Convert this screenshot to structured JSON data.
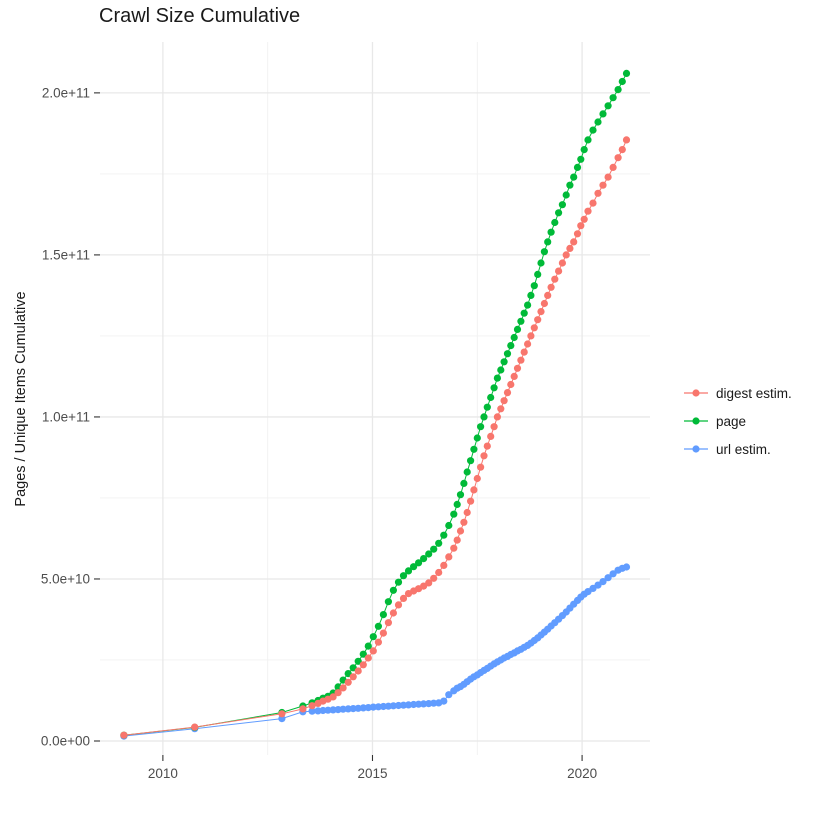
{
  "header": {
    "title": "Crawl Size Cumulative"
  },
  "y_axis": {
    "title": "Pages / Unique Items Cumulative"
  },
  "legend": {
    "position": "right",
    "items": [
      {
        "label": "digest estim.",
        "color": "#F8766D"
      },
      {
        "label": "page",
        "color": "#00BA38"
      },
      {
        "label": "url estim.",
        "color": "#619CFF"
      }
    ]
  },
  "chart_data": {
    "type": "line",
    "title": "Crawl Size Cumulative",
    "xlabel": "",
    "ylabel": "Pages / Unique Items Cumulative",
    "values_unit": "billions (1e9) of pages / unique items, cumulative",
    "grid": true,
    "legend_position": "right",
    "xlim": [
      2008.5,
      2021.62
    ],
    "ylim_billions": [
      -4.32,
      215.7
    ],
    "x_ticks": {
      "major": [
        2010,
        2015,
        2020
      ],
      "major_labels": [
        "2010",
        "2015",
        "2020"
      ],
      "minor": [
        2012.5,
        2017.5
      ]
    },
    "y_ticks": {
      "major": [
        0,
        50,
        100,
        150,
        200
      ],
      "major_labels": [
        "0.0e+00",
        "5.0e+10",
        "1.0e+11",
        "1.5e+11",
        "2.0e+11"
      ],
      "minor": [
        25,
        75,
        125,
        175
      ]
    },
    "x_years": [
      2009.07,
      2010.76,
      2012.84,
      2013.34,
      2013.56,
      2013.7,
      2013.82,
      2013.94,
      2014.06,
      2014.18,
      2014.3,
      2014.42,
      2014.54,
      2014.66,
      2014.78,
      2014.9,
      2015.02,
      2015.14,
      2015.26,
      2015.38,
      2015.5,
      2015.62,
      2015.74,
      2015.86,
      2015.98,
      2016.1,
      2016.22,
      2016.34,
      2016.46,
      2016.58,
      2016.7,
      2016.82,
      2016.94,
      2017.02,
      2017.1,
      2017.18,
      2017.26,
      2017.34,
      2017.42,
      2017.5,
      2017.58,
      2017.66,
      2017.74,
      2017.82,
      2017.9,
      2017.98,
      2018.06,
      2018.14,
      2018.22,
      2018.3,
      2018.38,
      2018.46,
      2018.54,
      2018.62,
      2018.7,
      2018.78,
      2018.86,
      2018.94,
      2019.02,
      2019.1,
      2019.18,
      2019.26,
      2019.35,
      2019.44,
      2019.53,
      2019.62,
      2019.71,
      2019.8,
      2019.89,
      2019.97,
      2020.05,
      2020.14,
      2020.26,
      2020.38,
      2020.5,
      2020.62,
      2020.74,
      2020.86,
      2020.96,
      2021.06
    ],
    "series": [
      {
        "name": "digest estim.",
        "color": "#F8766D",
        "values": [
          1.8,
          4.3,
          8.4,
          9.9,
          10.9,
          11.6,
          12.3,
          12.9,
          13.6,
          14.9,
          16.4,
          18.1,
          19.8,
          21.6,
          23.5,
          25.6,
          27.8,
          30.5,
          33.3,
          36.5,
          39.5,
          42.0,
          44.0,
          45.5,
          46.3,
          47.0,
          47.8,
          48.8,
          50.2,
          52.0,
          54.2,
          56.8,
          59.5,
          62.0,
          64.8,
          67.5,
          70.5,
          74.0,
          77.5,
          81.0,
          84.5,
          88.0,
          91.0,
          94.0,
          97.0,
          100.0,
          102.5,
          105.0,
          107.5,
          110.0,
          112.5,
          115.0,
          117.5,
          120.0,
          122.5,
          125.0,
          127.5,
          130.0,
          132.5,
          135.0,
          137.5,
          140.0,
          142.5,
          145.0,
          147.5,
          150.0,
          152.0,
          154.0,
          156.5,
          159.0,
          161.0,
          163.5,
          166.0,
          169.0,
          171.5,
          174.0,
          177.0,
          180.0,
          182.5,
          185.5
        ]
      },
      {
        "name": "page",
        "color": "#00BA38",
        "values": [
          1.8,
          4.2,
          8.8,
          10.8,
          11.8,
          12.5,
          13.2,
          13.8,
          14.8,
          16.7,
          18.8,
          20.8,
          22.6,
          24.6,
          26.8,
          29.3,
          32.2,
          35.4,
          39.0,
          43.0,
          46.5,
          49.0,
          51.0,
          52.5,
          53.8,
          55.0,
          56.3,
          57.7,
          59.2,
          61.0,
          63.5,
          66.5,
          70.0,
          73.0,
          76.0,
          79.5,
          83.0,
          86.5,
          90.0,
          93.5,
          97.0,
          100.0,
          103.0,
          106.0,
          109.0,
          112.0,
          114.5,
          117.0,
          119.5,
          122.0,
          124.5,
          127.0,
          129.5,
          132.0,
          134.5,
          137.5,
          140.5,
          144.0,
          147.5,
          151.0,
          154.0,
          157.0,
          160.0,
          163.0,
          165.5,
          168.5,
          171.5,
          174.0,
          177.0,
          179.5,
          182.5,
          185.5,
          188.5,
          191.0,
          193.5,
          196.0,
          198.5,
          201.0,
          203.5,
          206.0
        ]
      },
      {
        "name": "url estim.",
        "color": "#619CFF",
        "values": [
          1.5,
          3.8,
          6.9,
          9.0,
          9.2,
          9.3,
          9.4,
          9.5,
          9.6,
          9.7,
          9.8,
          9.9,
          10.0,
          10.1,
          10.2,
          10.3,
          10.45,
          10.55,
          10.65,
          10.75,
          10.85,
          10.95,
          11.05,
          11.15,
          11.25,
          11.35,
          11.45,
          11.55,
          11.65,
          11.75,
          12.3,
          14.3,
          15.5,
          16.3,
          16.8,
          17.5,
          18.3,
          19.1,
          19.8,
          20.4,
          21.1,
          21.8,
          22.4,
          23.1,
          23.8,
          24.4,
          25.0,
          25.6,
          26.1,
          26.7,
          27.2,
          27.8,
          28.3,
          28.9,
          29.5,
          30.2,
          31.0,
          31.8,
          32.7,
          33.6,
          34.5,
          35.5,
          36.5,
          37.6,
          38.7,
          39.8,
          41.0,
          42.2,
          43.4,
          44.4,
          45.3,
          46.1,
          47.1,
          48.1,
          49.2,
          50.4,
          51.6,
          52.7,
          53.3,
          53.7
        ]
      }
    ],
    "draw_order": [
      "url estim.",
      "page",
      "digest estim."
    ],
    "style": {
      "grid_major_color": "#E8E8E8",
      "grid_minor_color": "#F1F1F1",
      "tick_color": "#333333",
      "tick_label_color": "#4D4D4D",
      "point_radius": 3.6
    }
  }
}
